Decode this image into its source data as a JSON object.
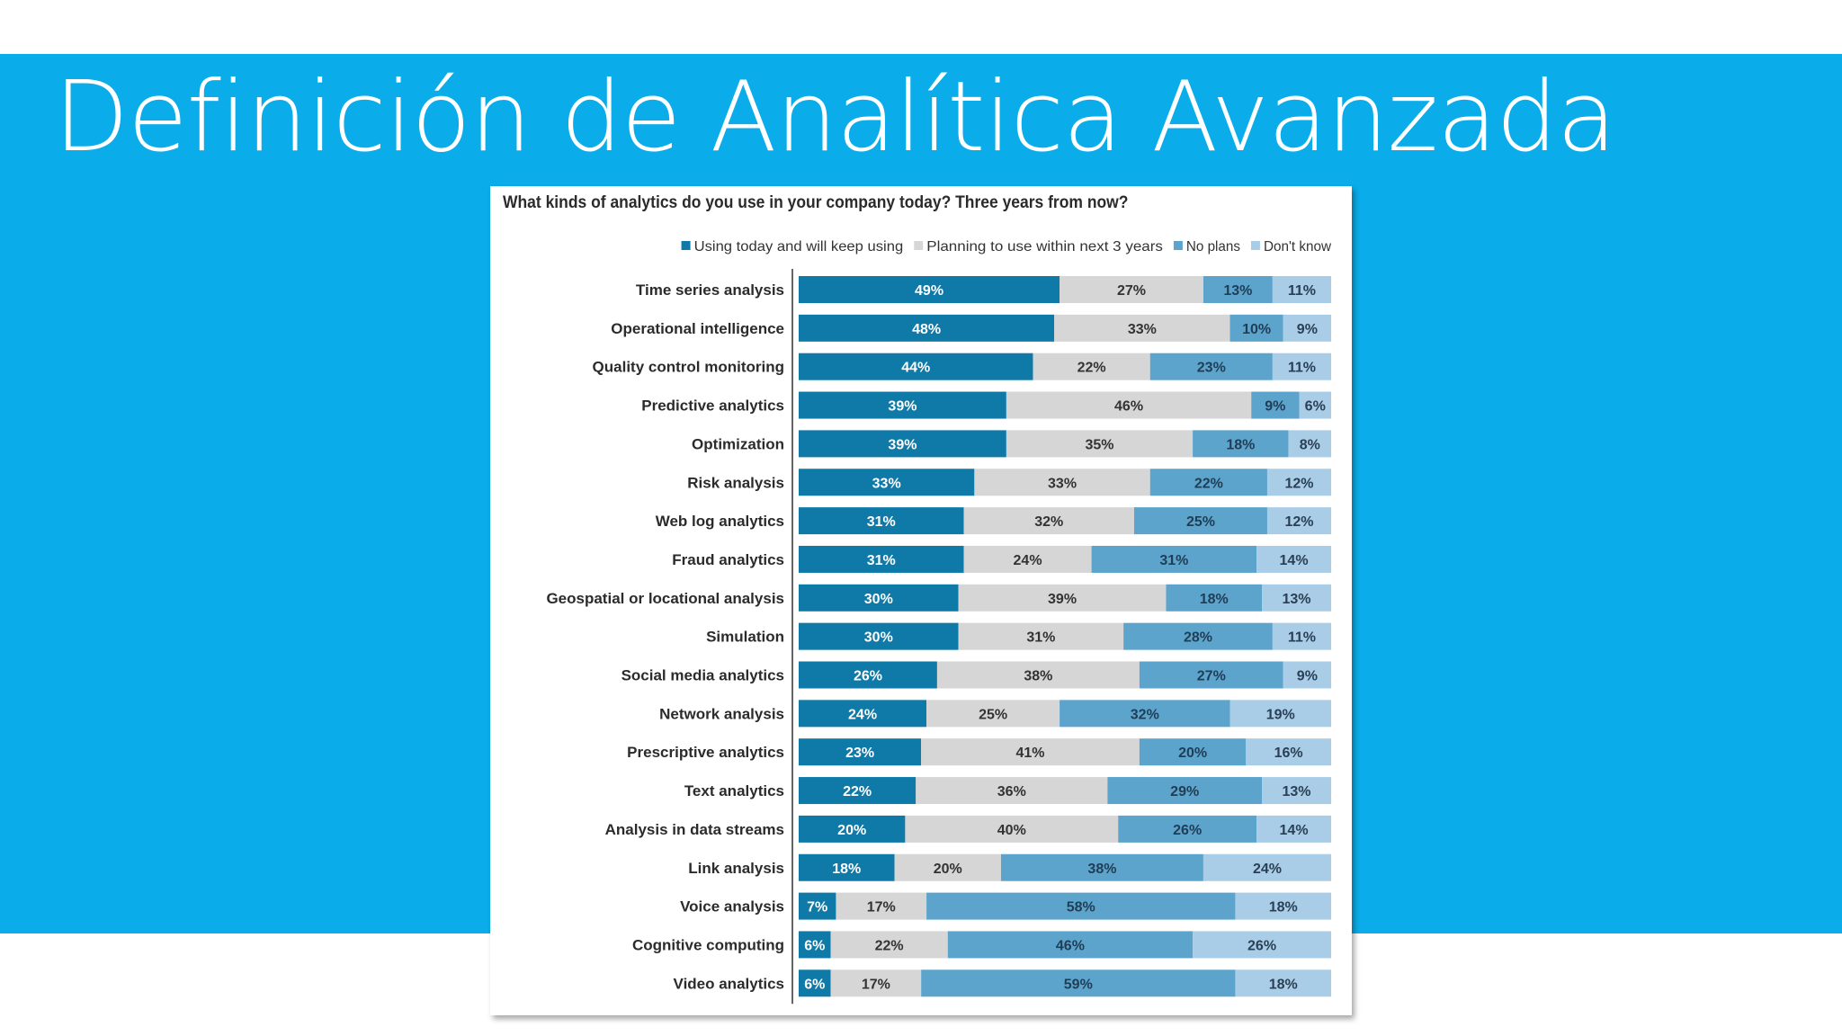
{
  "slide": {
    "title": "Definición de Analítica Avanzada",
    "band_color": "#0aadea"
  },
  "chart_data": {
    "type": "bar",
    "orientation": "horizontal",
    "stacked": true,
    "title": "What kinds of analytics do you use in your company today? Three years from now?",
    "legend_position": "top-right",
    "grid": false,
    "xlim": [
      0,
      100
    ],
    "categories": [
      "Time series analysis",
      "Operational intelligence",
      "Quality control monitoring",
      "Predictive analytics",
      "Optimization",
      "Risk analysis",
      "Web log analytics",
      "Fraud analytics",
      "Geospatial or locational analysis",
      "Simulation",
      "Social media analytics",
      "Network analysis",
      "Prescriptive analytics",
      "Text analytics",
      "Analysis in data streams",
      "Link analysis",
      "Voice analysis",
      "Cognitive computing",
      "Video analytics"
    ],
    "series": [
      {
        "name": "Using today and will keep using",
        "color": "#0f7aa8",
        "label_color": "#ffffff",
        "values": [
          49,
          48,
          44,
          39,
          39,
          33,
          31,
          31,
          30,
          30,
          26,
          24,
          23,
          22,
          20,
          18,
          7,
          6,
          6
        ]
      },
      {
        "name": "Planning to use within next 3 years",
        "color": "#d6d6d6",
        "label_color": "#333333",
        "values": [
          27,
          33,
          22,
          46,
          35,
          33,
          32,
          24,
          39,
          31,
          38,
          25,
          41,
          36,
          40,
          20,
          17,
          22,
          17
        ]
      },
      {
        "name": "No plans",
        "color": "#5da4cc",
        "label_color": "#1f3d55",
        "values": [
          13,
          10,
          23,
          9,
          18,
          22,
          25,
          31,
          18,
          28,
          27,
          32,
          20,
          29,
          26,
          38,
          58,
          46,
          59
        ]
      },
      {
        "name": "Don't know",
        "color": "#a9cde6",
        "label_color": "#2a3f55",
        "values": [
          11,
          9,
          11,
          6,
          8,
          12,
          12,
          14,
          13,
          11,
          9,
          19,
          16,
          13,
          14,
          24,
          18,
          26,
          18
        ]
      }
    ],
    "value_suffix": "%"
  }
}
